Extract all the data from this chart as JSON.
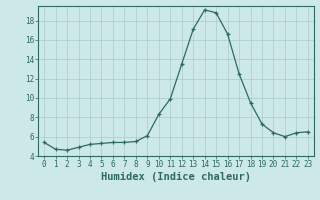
{
  "x": [
    0,
    1,
    2,
    3,
    4,
    5,
    6,
    7,
    8,
    9,
    10,
    11,
    12,
    13,
    14,
    15,
    16,
    17,
    18,
    19,
    20,
    21,
    22,
    23
  ],
  "y": [
    5.4,
    4.7,
    4.6,
    4.9,
    5.2,
    5.3,
    5.4,
    5.4,
    5.5,
    6.1,
    8.3,
    9.9,
    13.5,
    17.1,
    19.1,
    18.8,
    16.6,
    12.5,
    9.5,
    7.3,
    6.4,
    6.0,
    6.4,
    6.5
  ],
  "xlabel": "Humidex (Indice chaleur)",
  "ylim": [
    4,
    19.5
  ],
  "xlim": [
    -0.5,
    23.5
  ],
  "yticks": [
    4,
    6,
    8,
    10,
    12,
    14,
    16,
    18
  ],
  "xticks": [
    0,
    1,
    2,
    3,
    4,
    5,
    6,
    7,
    8,
    9,
    10,
    11,
    12,
    13,
    14,
    15,
    16,
    17,
    18,
    19,
    20,
    21,
    22,
    23
  ],
  "line_color": "#2e6b5e",
  "marker": "+",
  "bg_color": "#cce8e8",
  "grid_color": "#aacccc",
  "font_color": "#2e6b5e",
  "label_fontsize": 7.5,
  "tick_fontsize": 5.5
}
